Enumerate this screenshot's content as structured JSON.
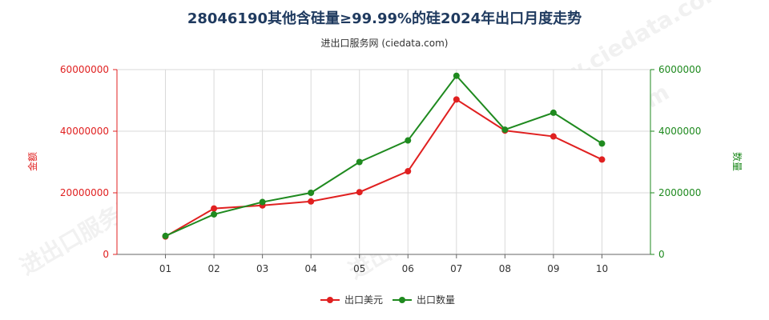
{
  "chart_data": {
    "type": "line",
    "title": "28046190其他含硅量≥99.99%的硅2024年出口月度走势",
    "subtitle": "进出口服务网 (ciedata.com)",
    "categories": [
      "01",
      "02",
      "03",
      "04",
      "05",
      "06",
      "07",
      "08",
      "09",
      "10"
    ],
    "series": [
      {
        "name": "出口美元",
        "axis": "left",
        "color": "#e02020",
        "values": [
          5800000,
          14900000,
          15900000,
          17200000,
          20200000,
          27000000,
          50300000,
          40200000,
          38300000,
          30800000
        ]
      },
      {
        "name": "出口数量",
        "axis": "right",
        "color": "#1f8a1f",
        "values": [
          600000,
          1300000,
          1700000,
          2000000,
          3000000,
          3700000,
          5800000,
          4050000,
          4600000,
          3600000
        ]
      }
    ],
    "left_axis": {
      "label": "金额",
      "ylim": [
        0,
        60000000
      ],
      "ticks": [
        "0",
        "20000000",
        "40000000",
        "60000000"
      ]
    },
    "right_axis": {
      "label": "数量",
      "ylim": [
        0,
        6000000
      ],
      "ticks": [
        "0",
        "2000000",
        "4000000",
        "6000000"
      ]
    },
    "grid": true,
    "legend_position": "bottom",
    "watermark": "进出口服务网 www.ciedata.com"
  }
}
